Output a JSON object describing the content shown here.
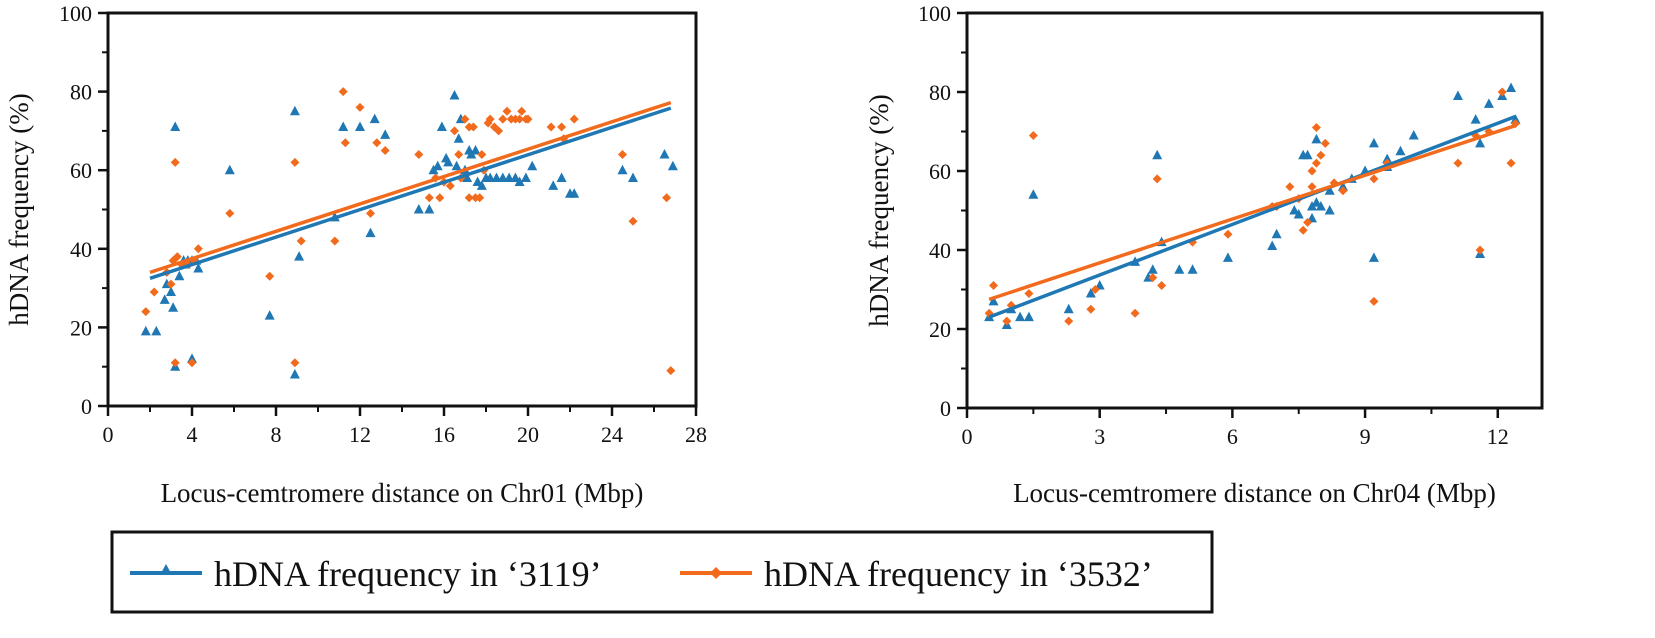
{
  "colors": {
    "series_3119": "#1f78b4",
    "series_3532": "#f26b1d",
    "axis": "#111111"
  },
  "legend": {
    "entries": [
      {
        "label": "hDNA frequency in ‘3119’",
        "marker": "triangle",
        "color": "#1f78b4"
      },
      {
        "label": "hDNA frequency in ‘3532’",
        "marker": "diamond",
        "color": "#f26b1d"
      }
    ]
  },
  "chart_data": [
    {
      "type": "scatter",
      "id": "chr01",
      "title": "",
      "xlabel": "Locus-cemtromere distance on Chr01 (Mbp)",
      "ylabel": "hDNA frequency (%)",
      "xlim": [
        0,
        28
      ],
      "ylim": [
        0,
        100
      ],
      "xticks": [
        0,
        4,
        8,
        12,
        16,
        20,
        24,
        28
      ],
      "yticks": [
        0,
        20,
        40,
        60,
        80,
        100
      ],
      "series": [
        {
          "name": "hDNA frequency in ‘3119’",
          "marker": "triangle",
          "color": "#1f78b4",
          "points": [
            [
              1.8,
              19
            ],
            [
              2.3,
              19
            ],
            [
              2.7,
              27
            ],
            [
              2.8,
              31
            ],
            [
              3.0,
              29
            ],
            [
              3.1,
              25
            ],
            [
              3.2,
              71
            ],
            [
              3.2,
              10
            ],
            [
              3.4,
              33
            ],
            [
              3.6,
              37
            ],
            [
              3.7,
              36
            ],
            [
              3.8,
              37
            ],
            [
              4.0,
              37
            ],
            [
              4.0,
              12
            ],
            [
              4.2,
              37
            ],
            [
              4.3,
              35
            ],
            [
              5.8,
              60
            ],
            [
              7.7,
              23
            ],
            [
              8.9,
              75
            ],
            [
              8.9,
              8
            ],
            [
              9.1,
              38
            ],
            [
              10.8,
              48
            ],
            [
              11.2,
              71
            ],
            [
              12.0,
              71
            ],
            [
              12.5,
              44
            ],
            [
              12.7,
              73
            ],
            [
              13.2,
              69
            ],
            [
              14.8,
              50
            ],
            [
              15.3,
              50
            ],
            [
              15.5,
              60
            ],
            [
              15.7,
              61
            ],
            [
              15.9,
              71
            ],
            [
              16.1,
              63
            ],
            [
              16.2,
              62
            ],
            [
              16.5,
              79
            ],
            [
              16.6,
              61
            ],
            [
              16.7,
              68
            ],
            [
              16.8,
              73
            ],
            [
              17.0,
              60
            ],
            [
              17.1,
              58
            ],
            [
              17.2,
              65
            ],
            [
              17.3,
              64
            ],
            [
              17.5,
              65
            ],
            [
              17.6,
              57
            ],
            [
              17.8,
              56
            ],
            [
              18.0,
              58
            ],
            [
              18.2,
              58
            ],
            [
              18.5,
              58
            ],
            [
              18.8,
              58
            ],
            [
              19.1,
              58
            ],
            [
              19.4,
              58
            ],
            [
              19.6,
              57
            ],
            [
              19.9,
              58
            ],
            [
              20.2,
              61
            ],
            [
              21.2,
              56
            ],
            [
              21.6,
              58
            ],
            [
              22.0,
              54
            ],
            [
              22.2,
              54
            ],
            [
              24.5,
              60
            ],
            [
              25.0,
              58
            ],
            [
              26.5,
              64
            ],
            [
              26.9,
              61
            ]
          ],
          "fit": [
            [
              2.0,
              32.5
            ],
            [
              26.8,
              75.8
            ]
          ]
        },
        {
          "name": "hDNA frequency in ‘3532’",
          "marker": "diamond",
          "color": "#f26b1d",
          "points": [
            [
              1.8,
              24
            ],
            [
              2.2,
              29
            ],
            [
              2.8,
              34
            ],
            [
              3.0,
              31
            ],
            [
              3.1,
              37
            ],
            [
              3.2,
              62
            ],
            [
              3.2,
              11
            ],
            [
              3.3,
              38
            ],
            [
              3.5,
              36
            ],
            [
              3.8,
              36
            ],
            [
              4.0,
              11
            ],
            [
              4.1,
              37
            ],
            [
              4.3,
              40
            ],
            [
              5.8,
              49
            ],
            [
              7.7,
              33
            ],
            [
              8.9,
              62
            ],
            [
              8.9,
              11
            ],
            [
              9.2,
              42
            ],
            [
              10.8,
              42
            ],
            [
              11.2,
              80
            ],
            [
              11.3,
              67
            ],
            [
              12.0,
              76
            ],
            [
              12.5,
              49
            ],
            [
              12.8,
              67
            ],
            [
              13.2,
              65
            ],
            [
              14.8,
              64
            ],
            [
              15.3,
              53
            ],
            [
              15.6,
              58
            ],
            [
              15.8,
              53
            ],
            [
              16.0,
              57
            ],
            [
              16.3,
              56
            ],
            [
              16.5,
              70
            ],
            [
              16.7,
              64
            ],
            [
              16.8,
              58
            ],
            [
              17.0,
              73
            ],
            [
              17.2,
              71
            ],
            [
              17.2,
              53
            ],
            [
              17.4,
              71
            ],
            [
              17.5,
              53
            ],
            [
              17.7,
              53
            ],
            [
              17.8,
              64
            ],
            [
              17.9,
              60
            ],
            [
              18.1,
              72
            ],
            [
              18.2,
              73
            ],
            [
              18.4,
              71
            ],
            [
              18.6,
              70
            ],
            [
              18.8,
              73
            ],
            [
              19.0,
              75
            ],
            [
              19.2,
              73
            ],
            [
              19.4,
              73
            ],
            [
              19.6,
              73
            ],
            [
              19.7,
              75
            ],
            [
              19.9,
              73
            ],
            [
              20.0,
              73
            ],
            [
              21.1,
              71
            ],
            [
              21.6,
              71
            ],
            [
              21.7,
              68
            ],
            [
              22.2,
              73
            ],
            [
              24.5,
              64
            ],
            [
              25.0,
              47
            ],
            [
              26.6,
              53
            ],
            [
              26.8,
              9
            ]
          ],
          "fit": [
            [
              2.0,
              34.0
            ],
            [
              26.8,
              77.2
            ]
          ]
        }
      ]
    },
    {
      "type": "scatter",
      "id": "chr04",
      "title": "",
      "xlabel": "Locus-cemtromere distance on Chr04 (Mbp)",
      "ylabel": "hDNA frequency (%)",
      "xlim": [
        0,
        13
      ],
      "ylim": [
        0,
        100
      ],
      "xticks": [
        0,
        3,
        6,
        9,
        12
      ],
      "yticks": [
        0,
        20,
        40,
        60,
        80,
        100
      ],
      "series": [
        {
          "name": "hDNA frequency in ‘3119’",
          "marker": "triangle",
          "color": "#1f78b4",
          "points": [
            [
              0.5,
              23
            ],
            [
              0.6,
              27
            ],
            [
              0.9,
              21
            ],
            [
              1.0,
              25
            ],
            [
              1.2,
              23
            ],
            [
              1.4,
              23
            ],
            [
              1.5,
              54
            ],
            [
              2.3,
              25
            ],
            [
              2.8,
              29
            ],
            [
              3.0,
              31
            ],
            [
              3.8,
              37
            ],
            [
              4.1,
              33
            ],
            [
              4.2,
              35
            ],
            [
              4.3,
              64
            ],
            [
              4.4,
              42
            ],
            [
              4.8,
              35
            ],
            [
              5.1,
              35
            ],
            [
              5.9,
              38
            ],
            [
              6.9,
              41
            ],
            [
              7.0,
              44
            ],
            [
              7.4,
              50
            ],
            [
              7.5,
              49
            ],
            [
              7.6,
              64
            ],
            [
              7.7,
              64
            ],
            [
              7.8,
              48
            ],
            [
              7.8,
              51
            ],
            [
              7.9,
              52
            ],
            [
              7.9,
              68
            ],
            [
              8.0,
              51
            ],
            [
              8.2,
              55
            ],
            [
              8.2,
              50
            ],
            [
              8.5,
              56
            ],
            [
              8.7,
              58
            ],
            [
              9.0,
              60
            ],
            [
              9.2,
              67
            ],
            [
              9.2,
              38
            ],
            [
              9.5,
              63
            ],
            [
              9.5,
              61
            ],
            [
              9.8,
              65
            ],
            [
              10.1,
              69
            ],
            [
              11.1,
              79
            ],
            [
              11.5,
              73
            ],
            [
              11.6,
              67
            ],
            [
              11.6,
              39
            ],
            [
              11.8,
              77
            ],
            [
              12.1,
              79
            ],
            [
              12.3,
              81
            ],
            [
              12.4,
              73
            ]
          ],
          "fit": [
            [
              0.5,
              23.0
            ],
            [
              12.4,
              73.8
            ]
          ]
        },
        {
          "name": "hDNA frequency in ‘3532’",
          "marker": "diamond",
          "color": "#f26b1d",
          "points": [
            [
              0.5,
              24
            ],
            [
              0.6,
              31
            ],
            [
              0.9,
              22
            ],
            [
              1.0,
              26
            ],
            [
              1.4,
              29
            ],
            [
              1.5,
              69
            ],
            [
              2.3,
              22
            ],
            [
              2.8,
              25
            ],
            [
              2.9,
              30
            ],
            [
              3.8,
              24
            ],
            [
              4.2,
              33
            ],
            [
              4.3,
              58
            ],
            [
              4.4,
              31
            ],
            [
              5.1,
              42
            ],
            [
              5.9,
              44
            ],
            [
              6.9,
              51
            ],
            [
              7.0,
              51
            ],
            [
              7.3,
              56
            ],
            [
              7.5,
              53
            ],
            [
              7.6,
              45
            ],
            [
              7.7,
              47
            ],
            [
              7.8,
              56
            ],
            [
              7.8,
              60
            ],
            [
              7.9,
              62
            ],
            [
              7.9,
              71
            ],
            [
              8.0,
              64
            ],
            [
              8.1,
              67
            ],
            [
              8.3,
              57
            ],
            [
              8.5,
              55
            ],
            [
              9.2,
              58
            ],
            [
              9.2,
              27
            ],
            [
              9.5,
              62
            ],
            [
              11.1,
              62
            ],
            [
              11.5,
              69
            ],
            [
              11.6,
              40
            ],
            [
              11.8,
              70
            ],
            [
              12.1,
              80
            ],
            [
              12.3,
              62
            ],
            [
              12.4,
              72
            ]
          ],
          "fit": [
            [
              0.5,
              27.5
            ],
            [
              12.4,
              71.5
            ]
          ]
        }
      ]
    }
  ]
}
